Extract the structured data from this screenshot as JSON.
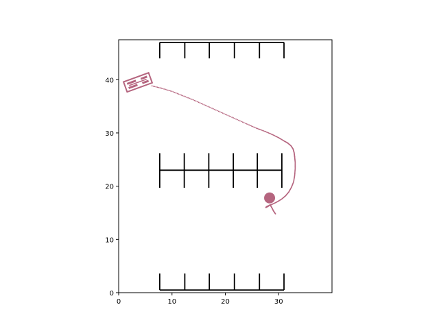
{
  "chart_data": {
    "type": "scatter",
    "title": "",
    "xlabel": "",
    "ylabel": "",
    "xlim": [
      0,
      40
    ],
    "ylim": [
      0,
      47.5
    ],
    "grid": false,
    "x_ticks": [
      0,
      10,
      20,
      30
    ],
    "y_ticks": [
      0,
      10,
      20,
      30,
      40
    ],
    "x_tick_labels": [
      "0",
      "10",
      "20",
      "30"
    ],
    "y_tick_labels": [
      "0",
      "10",
      "20",
      "30",
      "40"
    ],
    "colors": {
      "path": "#b5657f",
      "lots": "#000000",
      "axes": "#000000"
    },
    "parking_rows": [
      {
        "name": "top-row",
        "x_start": 7.7,
        "x_end": 31.0,
        "spine_y": 47.0,
        "stall_x": [
          7.7,
          12.4,
          17.0,
          21.7,
          26.4,
          31.0
        ],
        "stall_y_range": [
          44.0,
          47.0
        ]
      },
      {
        "name": "middle-row",
        "x_start": 7.7,
        "x_end": 30.6,
        "spine_y": 23.0,
        "stall_x": [
          7.7,
          12.3,
          16.9,
          21.5,
          26.0,
          30.6
        ],
        "stall_y_range": [
          19.7,
          26.2
        ]
      },
      {
        "name": "bottom-row",
        "x_start": 7.7,
        "x_end": 31.0,
        "spine_y": 0.5,
        "stall_x": [
          7.7,
          12.4,
          17.0,
          21.7,
          26.4,
          31.0
        ],
        "stall_y_range": [
          0.5,
          3.6
        ]
      }
    ],
    "vehicle": {
      "x": 3.6,
      "y": 39.5,
      "heading_deg": 20,
      "length": 5.0,
      "width": 2.0
    },
    "goal": {
      "x": 28.3,
      "y": 17.8
    },
    "trajectory": {
      "x": [
        29.4,
        29.0,
        28.7,
        28.4,
        28.0,
        27.6,
        27.8,
        28.3,
        29.0,
        29.8,
        30.6,
        31.3,
        31.9,
        32.4,
        32.8,
        33.0,
        33.1,
        33.1,
        33.0,
        32.9,
        32.7,
        32.3,
        31.7,
        31.0,
        30.0,
        28.8,
        27.4,
        25.8,
        24.0,
        22.0,
        20.0,
        18.0,
        16.0,
        14.0,
        12.0,
        10.0,
        8.0,
        6.0
      ],
      "y": [
        14.8,
        15.4,
        16.0,
        16.5,
        16.2,
        16.0,
        16.2,
        16.4,
        16.7,
        17.1,
        17.6,
        18.2,
        18.9,
        19.8,
        20.8,
        22.0,
        23.3,
        24.5,
        25.5,
        26.3,
        27.0,
        27.6,
        28.1,
        28.5,
        29.1,
        29.7,
        30.3,
        30.9,
        31.7,
        32.6,
        33.5,
        34.4,
        35.3,
        36.2,
        37.0,
        37.8,
        38.4,
        38.9
      ]
    }
  }
}
